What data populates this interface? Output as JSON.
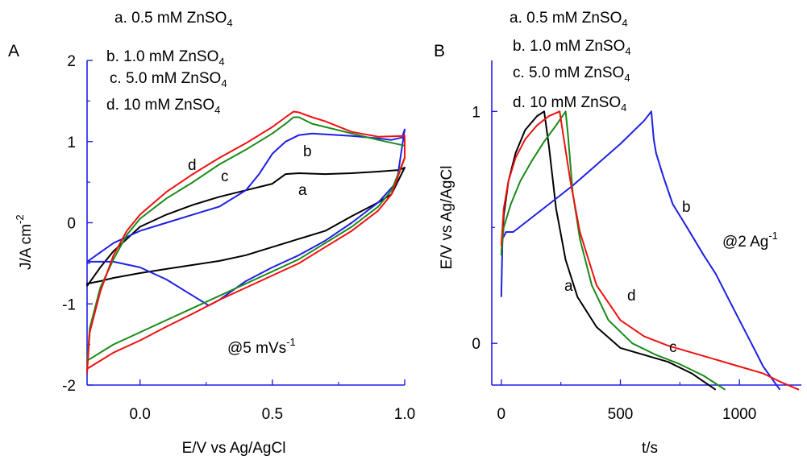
{
  "panels": [
    {
      "panel_label": "A",
      "xlabel": "E/V vs Ag/AgCl",
      "ylabel": "J/A cm",
      "ylabel_exp": "-2",
      "annotation": "@5 mVs",
      "annotation_exp": "-1",
      "legend": [
        {
          "prefix": "a. 0.5 mM ZnSO",
          "sub": "4",
          "color": "#000000"
        },
        {
          "prefix": "b. 1.0 mM ZnSO",
          "sub": "4",
          "color": "#1f1fe6"
        },
        {
          "prefix": "c. 5.0 mM ZnSO",
          "sub": "4",
          "color": "#1a8a1a"
        },
        {
          "prefix": "d. 10 mM ZnSO",
          "sub": "4",
          "color": "#ee1111"
        }
      ],
      "curve_labels": [
        "a",
        "b",
        "c",
        "d"
      ],
      "xticks": [
        "0.0",
        "0.5",
        "1.0"
      ],
      "yticks": [
        "-2",
        "-1",
        "0",
        "1",
        "2"
      ]
    },
    {
      "panel_label": "B",
      "xlabel": "t/s",
      "ylabel": "E/V vs Ag/AgCl",
      "annotation": "@2 Ag",
      "annotation_exp": "-1",
      "legend": [
        {
          "prefix": "a. 0.5 mM ZnSO",
          "sub": "4",
          "color": "#000000"
        },
        {
          "prefix": "b. 1.0 mM ZnSO",
          "sub": "4",
          "color": "#1f1fe6"
        },
        {
          "prefix": "c. 5.0 mM ZnSO",
          "sub": "4",
          "color": "#1a8a1a"
        },
        {
          "prefix": "d. 10 mM ZnSO",
          "sub": "4",
          "color": "#ee1111"
        }
      ],
      "curve_labels": [
        "a",
        "b",
        "c",
        "d"
      ],
      "xticks": [
        "0",
        "500",
        "1000"
      ],
      "yticks": [
        "0",
        "1"
      ]
    }
  ],
  "chart_data": [
    {
      "type": "line",
      "xlabel": "E/V vs Ag/AgCl",
      "ylabel": "J/A cm-2",
      "xlim": [
        -0.2,
        1.0
      ],
      "ylim": [
        -2,
        2
      ],
      "series": [
        {
          "name": "a. 0.5 mM ZnSO4",
          "color": "#000000",
          "x": [
            -0.2,
            -0.15,
            -0.1,
            -0.05,
            0.0,
            0.1,
            0.2,
            0.3,
            0.4,
            0.5,
            0.55,
            0.6,
            0.7,
            0.8,
            0.9,
            0.98,
            1.0,
            0.95,
            0.9,
            0.8,
            0.7,
            0.6,
            0.5,
            0.4,
            0.3,
            0.2,
            0.1,
            0.0,
            -0.1,
            -0.15,
            -0.2,
            -0.2
          ],
          "y": [
            -0.78,
            -0.55,
            -0.35,
            -0.2,
            -0.05,
            0.1,
            0.22,
            0.32,
            0.4,
            0.48,
            0.6,
            0.61,
            0.6,
            0.61,
            0.63,
            0.65,
            0.68,
            0.35,
            0.25,
            0.08,
            -0.1,
            -0.2,
            -0.3,
            -0.4,
            -0.47,
            -0.52,
            -0.57,
            -0.62,
            -0.68,
            -0.72,
            -0.75,
            -0.78
          ]
        },
        {
          "name": "b. 1.0 mM ZnSO4",
          "color": "#1f1fe6",
          "x": [
            -0.2,
            -0.1,
            0.0,
            0.1,
            0.2,
            0.3,
            0.4,
            0.45,
            0.5,
            0.55,
            0.6,
            0.65,
            0.7,
            0.8,
            0.9,
            0.95,
            0.99,
            1.0,
            0.97,
            0.9,
            0.8,
            0.7,
            0.6,
            0.5,
            0.4,
            0.3,
            0.26,
            0.2,
            0.1,
            0.0,
            -0.1,
            -0.2
          ],
          "y": [
            -0.48,
            -0.25,
            -0.1,
            0.0,
            0.1,
            0.2,
            0.4,
            0.6,
            0.85,
            1.0,
            1.08,
            1.1,
            1.09,
            1.07,
            1.04,
            1.02,
            1.05,
            1.15,
            0.5,
            0.25,
            0.0,
            -0.22,
            -0.4,
            -0.55,
            -0.72,
            -0.95,
            -1.02,
            -0.9,
            -0.7,
            -0.55,
            -0.48,
            -0.48
          ]
        },
        {
          "name": "c. 5.0 mM ZnSO4",
          "color": "#1a8a1a",
          "x": [
            -0.2,
            -0.19,
            -0.15,
            -0.1,
            -0.05,
            0.0,
            0.1,
            0.2,
            0.3,
            0.4,
            0.5,
            0.55,
            0.58,
            0.6,
            0.65,
            0.7,
            0.8,
            0.9,
            1.0,
            1.0,
            0.95,
            0.9,
            0.8,
            0.7,
            0.6,
            0.5,
            0.4,
            0.3,
            0.2,
            0.1,
            0.0,
            -0.1,
            -0.2,
            -0.2
          ],
          "y": [
            -1.75,
            -1.3,
            -0.8,
            -0.45,
            -0.15,
            0.05,
            0.3,
            0.5,
            0.72,
            0.9,
            1.1,
            1.22,
            1.3,
            1.3,
            1.22,
            1.18,
            1.1,
            1.02,
            0.95,
            0.8,
            0.4,
            0.2,
            -0.05,
            -0.25,
            -0.45,
            -0.6,
            -0.75,
            -0.9,
            -1.05,
            -1.2,
            -1.35,
            -1.5,
            -1.7,
            -1.75
          ]
        },
        {
          "name": "d. 10 mM ZnSO4",
          "color": "#ee1111",
          "x": [
            -0.2,
            -0.19,
            -0.15,
            -0.1,
            -0.05,
            0.0,
            0.1,
            0.2,
            0.3,
            0.4,
            0.5,
            0.55,
            0.58,
            0.6,
            0.65,
            0.7,
            0.8,
            0.9,
            1.0,
            1.0,
            0.95,
            0.9,
            0.8,
            0.7,
            0.6,
            0.5,
            0.4,
            0.3,
            0.2,
            0.1,
            0.0,
            -0.1,
            -0.2,
            -0.2
          ],
          "y": [
            -1.85,
            -1.35,
            -0.85,
            -0.4,
            -0.1,
            0.1,
            0.38,
            0.6,
            0.8,
            0.98,
            1.18,
            1.3,
            1.37,
            1.36,
            1.3,
            1.25,
            1.12,
            1.06,
            1.07,
            0.8,
            0.35,
            0.15,
            -0.1,
            -0.3,
            -0.5,
            -0.65,
            -0.8,
            -0.95,
            -1.12,
            -1.28,
            -1.45,
            -1.6,
            -1.8,
            -1.85
          ]
        }
      ]
    },
    {
      "type": "line",
      "xlabel": "t/s",
      "ylabel": "E/V vs Ag/AgCl",
      "xlim": [
        -40,
        1260
      ],
      "ylim": [
        -0.18,
        1.22
      ],
      "series": [
        {
          "name": "a. 0.5 mM ZnSO4",
          "color": "#000000",
          "x": [
            0,
            10,
            30,
            60,
            100,
            150,
            180,
            200,
            230,
            270,
            320,
            400,
            500,
            600,
            700,
            800,
            900
          ],
          "y": [
            0.38,
            0.55,
            0.7,
            0.82,
            0.92,
            0.98,
            1.0,
            0.85,
            0.58,
            0.36,
            0.2,
            0.07,
            -0.02,
            -0.05,
            -0.08,
            -0.13,
            -0.2
          ]
        },
        {
          "name": "b. 1.0 mM ZnSO4",
          "color": "#1f1fe6",
          "x": [
            0,
            5,
            20,
            50,
            100,
            200,
            300,
            400,
            500,
            600,
            630,
            640,
            650,
            680,
            720,
            780,
            850,
            900,
            950,
            1000,
            1050,
            1100,
            1170
          ],
          "y": [
            0.2,
            0.45,
            0.48,
            0.48,
            0.52,
            0.6,
            0.68,
            0.77,
            0.86,
            0.96,
            1.0,
            0.88,
            0.82,
            0.72,
            0.6,
            0.5,
            0.38,
            0.3,
            0.2,
            0.1,
            0.0,
            -0.1,
            -0.2
          ]
        },
        {
          "name": "c. 5.0 mM ZnSO4",
          "color": "#1a8a1a",
          "x": [
            0,
            10,
            40,
            80,
            130,
            180,
            230,
            270,
            280,
            300,
            330,
            380,
            450,
            550,
            650,
            750,
            850,
            940
          ],
          "y": [
            0.38,
            0.5,
            0.6,
            0.7,
            0.79,
            0.87,
            0.94,
            1.0,
            0.9,
            0.65,
            0.45,
            0.25,
            0.1,
            0.0,
            -0.05,
            -0.09,
            -0.14,
            -0.2
          ]
        },
        {
          "name": "d. 10 mM ZnSO4",
          "color": "#ee1111",
          "x": [
            0,
            10,
            30,
            60,
            100,
            150,
            200,
            245,
            260,
            290,
            330,
            400,
            500,
            600,
            700,
            800,
            900,
            1000,
            1100,
            1180,
            1250
          ],
          "y": [
            0.42,
            0.58,
            0.7,
            0.8,
            0.88,
            0.94,
            0.98,
            1.0,
            0.9,
            0.7,
            0.48,
            0.25,
            0.1,
            0.03,
            -0.01,
            -0.04,
            -0.07,
            -0.1,
            -0.13,
            -0.17,
            -0.2
          ]
        }
      ]
    }
  ]
}
